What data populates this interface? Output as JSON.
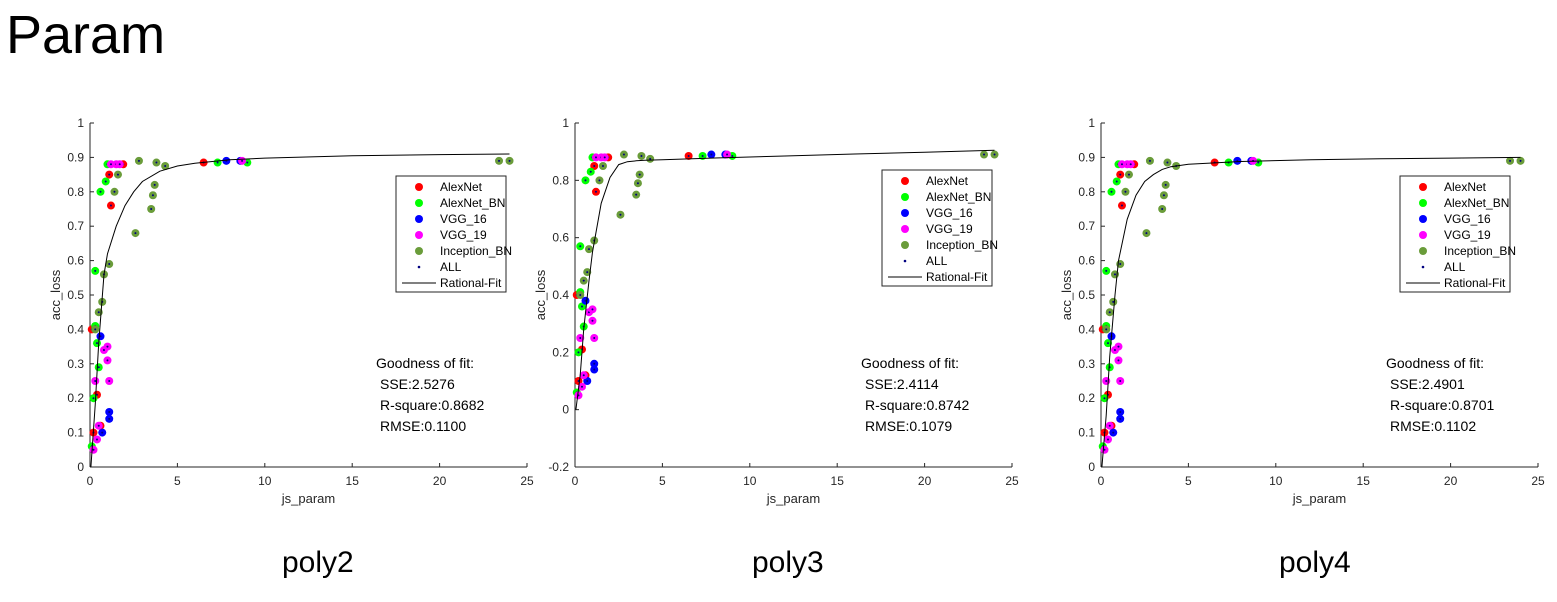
{
  "page": {
    "title": "Param"
  },
  "legend_labels": [
    "AlexNet",
    "AlexNet_BN",
    "VGG_16",
    "VGG_19",
    "Inception_BN",
    "ALL",
    "Rational-Fit"
  ],
  "colors": {
    "AlexNet": "#ff0000",
    "AlexNet_BN": "#00ff00",
    "VGG_16": "#0000ff",
    "VGG_19": "#ff00ff",
    "Inception_BN": "#6a9c3a",
    "ALL": "#000080",
    "fit": "#000000"
  },
  "chart_data": [
    {
      "type": "scatter",
      "caption": "poly2",
      "xlabel": "js_param",
      "ylabel": "acc_loss",
      "xlim": [
        0,
        25
      ],
      "ylim": [
        0,
        1
      ],
      "xticks": [
        "0",
        "5",
        "10",
        "15",
        "20",
        "25"
      ],
      "yticks": [
        "0",
        "0.1",
        "0.2",
        "0.3",
        "0.4",
        "0.5",
        "0.6",
        "0.7",
        "0.8",
        "0.9",
        "1"
      ],
      "gof": {
        "title": "Goodness of fit:",
        "sse": "SSE:2.5276",
        "rsquare": "R-square:0.8682",
        "rmse": "RMSE:0.1100"
      },
      "fit_curve": {
        "x": [
          0.05,
          0.3,
          0.5,
          0.8,
          1.0,
          1.5,
          2.0,
          2.5,
          3.0,
          4.0,
          5.0,
          6.0,
          8.0,
          10.0,
          15.0,
          20.0,
          24.0
        ],
        "y": [
          0.0,
          0.18,
          0.36,
          0.56,
          0.62,
          0.7,
          0.76,
          0.8,
          0.83,
          0.86,
          0.875,
          0.883,
          0.893,
          0.898,
          0.905,
          0.908,
          0.91
        ]
      },
      "series": [
        {
          "name": "AlexNet",
          "x": [
            0.1,
            0.2,
            0.4,
            0.6,
            1.1,
            1.2,
            1.9,
            6.5
          ],
          "y": [
            0.4,
            0.1,
            0.21,
            0.12,
            0.85,
            0.76,
            0.88,
            0.885
          ]
        },
        {
          "name": "AlexNet_BN",
          "x": [
            0.1,
            0.2,
            0.3,
            0.4,
            0.5,
            0.3,
            0.9,
            1.0,
            0.6,
            7.3,
            9.0
          ],
          "y": [
            0.06,
            0.2,
            0.41,
            0.36,
            0.29,
            0.57,
            0.83,
            0.88,
            0.8,
            0.885,
            0.885
          ]
        },
        {
          "name": "VGG_16",
          "x": [
            0.6,
            0.7,
            1.1,
            1.1,
            7.8,
            8.6
          ],
          "y": [
            0.38,
            0.1,
            0.14,
            0.16,
            0.89,
            0.89
          ]
        },
        {
          "name": "VGG_19",
          "x": [
            0.3,
            0.5,
            0.8,
            1.0,
            1.0,
            1.1,
            1.2,
            1.5,
            1.7,
            8.7,
            0.2,
            0.4
          ],
          "y": [
            0.25,
            0.12,
            0.34,
            0.31,
            0.35,
            0.25,
            0.88,
            0.88,
            0.88,
            0.89,
            0.05,
            0.08
          ]
        },
        {
          "name": "Inception_BN",
          "x": [
            0.3,
            0.5,
            0.7,
            0.8,
            1.1,
            2.6,
            2.8,
            3.5,
            3.6,
            3.7,
            3.8,
            4.3,
            23.4,
            24.0,
            1.6,
            1.4
          ],
          "y": [
            0.4,
            0.45,
            0.48,
            0.56,
            0.59,
            0.68,
            0.89,
            0.75,
            0.79,
            0.82,
            0.885,
            0.875,
            0.89,
            0.89,
            0.85,
            0.8
          ]
        }
      ]
    },
    {
      "type": "scatter",
      "caption": "poly3",
      "xlabel": "js_param",
      "ylabel": "acc_loss",
      "xlim": [
        0,
        25
      ],
      "ylim": [
        -0.2,
        1
      ],
      "xticks": [
        "0",
        "5",
        "10",
        "15",
        "20",
        "25"
      ],
      "yticks": [
        "-0.2",
        "0",
        "0.2",
        "0.4",
        "0.6",
        "0.8",
        "1"
      ],
      "gof": {
        "title": "Goodness of fit:",
        "sse": "SSE:2.4114",
        "rsquare": "R-square:0.8742",
        "rmse": "RMSE:0.1079"
      },
      "fit_curve": {
        "x": [
          0.05,
          0.3,
          0.5,
          0.8,
          1.0,
          1.5,
          2.0,
          2.5,
          3.0,
          3.5,
          4.0,
          5.0,
          8.0,
          12.0,
          16.0,
          20.0,
          24.0
        ],
        "y": [
          0.0,
          0.12,
          0.28,
          0.45,
          0.55,
          0.72,
          0.81,
          0.855,
          0.865,
          0.868,
          0.87,
          0.872,
          0.878,
          0.885,
          0.892,
          0.898,
          0.905
        ]
      },
      "series": [
        {
          "name": "AlexNet",
          "x": [
            0.1,
            0.2,
            0.4,
            0.6,
            1.1,
            1.2,
            1.9,
            6.5
          ],
          "y": [
            0.4,
            0.1,
            0.21,
            0.12,
            0.85,
            0.76,
            0.88,
            0.885
          ]
        },
        {
          "name": "AlexNet_BN",
          "x": [
            0.1,
            0.2,
            0.3,
            0.4,
            0.5,
            0.3,
            0.9,
            1.0,
            0.6,
            7.3,
            9.0
          ],
          "y": [
            0.06,
            0.2,
            0.41,
            0.36,
            0.29,
            0.57,
            0.83,
            0.88,
            0.8,
            0.885,
            0.885
          ]
        },
        {
          "name": "VGG_16",
          "x": [
            0.6,
            0.7,
            1.1,
            1.1,
            7.8,
            8.6
          ],
          "y": [
            0.38,
            0.1,
            0.14,
            0.16,
            0.89,
            0.89
          ]
        },
        {
          "name": "VGG_19",
          "x": [
            0.3,
            0.5,
            0.8,
            1.0,
            1.0,
            1.1,
            1.2,
            1.5,
            1.7,
            8.7,
            0.2,
            0.4
          ],
          "y": [
            0.25,
            0.12,
            0.34,
            0.31,
            0.35,
            0.25,
            0.88,
            0.88,
            0.88,
            0.89,
            0.05,
            0.08
          ]
        },
        {
          "name": "Inception_BN",
          "x": [
            0.3,
            0.5,
            0.7,
            0.8,
            1.1,
            2.6,
            2.8,
            3.5,
            3.6,
            3.7,
            3.8,
            4.3,
            23.4,
            24.0,
            1.6,
            1.4
          ],
          "y": [
            0.4,
            0.45,
            0.48,
            0.56,
            0.59,
            0.68,
            0.89,
            0.75,
            0.79,
            0.82,
            0.885,
            0.875,
            0.89,
            0.89,
            0.85,
            0.8
          ]
        }
      ]
    },
    {
      "type": "scatter",
      "caption": "poly4",
      "xlabel": "js_param",
      "ylabel": "acc_loss",
      "xlim": [
        0,
        25
      ],
      "ylim": [
        0,
        1
      ],
      "xticks": [
        "0",
        "5",
        "10",
        "15",
        "20",
        "25"
      ],
      "yticks": [
        "0",
        "0.1",
        "0.2",
        "0.3",
        "0.4",
        "0.5",
        "0.6",
        "0.7",
        "0.8",
        "0.9",
        "1"
      ],
      "gof": {
        "title": "Goodness of fit:",
        "sse": "SSE:2.4901",
        "rsquare": "R-square:0.8701",
        "rmse": "RMSE:0.1102"
      },
      "fit_curve": {
        "x": [
          0.05,
          0.3,
          0.5,
          0.8,
          1.0,
          1.5,
          2.0,
          2.5,
          3.0,
          3.5,
          4.0,
          5.0,
          8.0,
          12.0,
          16.0,
          20.0,
          24.0
        ],
        "y": [
          0.0,
          0.15,
          0.32,
          0.5,
          0.6,
          0.72,
          0.79,
          0.83,
          0.85,
          0.865,
          0.873,
          0.88,
          0.888,
          0.893,
          0.896,
          0.898,
          0.9
        ]
      },
      "series": [
        {
          "name": "AlexNet",
          "x": [
            0.1,
            0.2,
            0.4,
            0.6,
            1.1,
            1.2,
            1.9,
            6.5
          ],
          "y": [
            0.4,
            0.1,
            0.21,
            0.12,
            0.85,
            0.76,
            0.88,
            0.885
          ]
        },
        {
          "name": "AlexNet_BN",
          "x": [
            0.1,
            0.2,
            0.3,
            0.4,
            0.5,
            0.3,
            0.9,
            1.0,
            0.6,
            7.3,
            9.0
          ],
          "y": [
            0.06,
            0.2,
            0.41,
            0.36,
            0.29,
            0.57,
            0.83,
            0.88,
            0.8,
            0.885,
            0.885
          ]
        },
        {
          "name": "VGG_16",
          "x": [
            0.6,
            0.7,
            1.1,
            1.1,
            7.8,
            8.6
          ],
          "y": [
            0.38,
            0.1,
            0.14,
            0.16,
            0.89,
            0.89
          ]
        },
        {
          "name": "VGG_19",
          "x": [
            0.3,
            0.5,
            0.8,
            1.0,
            1.0,
            1.1,
            1.2,
            1.5,
            1.7,
            8.7,
            0.2,
            0.4
          ],
          "y": [
            0.25,
            0.12,
            0.34,
            0.31,
            0.35,
            0.25,
            0.88,
            0.88,
            0.88,
            0.89,
            0.05,
            0.08
          ]
        },
        {
          "name": "Inception_BN",
          "x": [
            0.3,
            0.5,
            0.7,
            0.8,
            1.1,
            2.6,
            2.8,
            3.5,
            3.6,
            3.7,
            3.8,
            4.3,
            23.4,
            24.0,
            1.6,
            1.4
          ],
          "y": [
            0.4,
            0.45,
            0.48,
            0.56,
            0.59,
            0.68,
            0.89,
            0.75,
            0.79,
            0.82,
            0.885,
            0.875,
            0.89,
            0.89,
            0.85,
            0.8
          ]
        }
      ]
    }
  ]
}
